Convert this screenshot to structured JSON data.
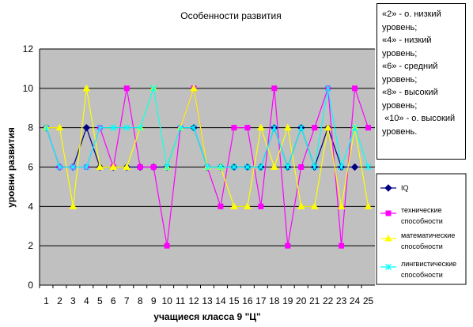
{
  "chart_data": {
    "type": "line",
    "title": "Особенности развития",
    "xlabel": "учащиеся класса 9 \"Ц\"",
    "ylabel": "уровни развития",
    "ylim": [
      0,
      12
    ],
    "yticks": [
      0,
      2,
      4,
      6,
      8,
      10,
      12
    ],
    "x": [
      1,
      2,
      3,
      4,
      5,
      6,
      7,
      8,
      9,
      10,
      11,
      12,
      13,
      14,
      15,
      16,
      17,
      18,
      19,
      20,
      21,
      22,
      23,
      24,
      25
    ],
    "grid": true,
    "legend_position": "right",
    "series": [
      {
        "name": "IQ",
        "color": "#000080",
        "marker": "diamond",
        "values": [
          8,
          6,
          6,
          8,
          6,
          6,
          6,
          6,
          6,
          6,
          8,
          8,
          6,
          6,
          6,
          6,
          6,
          8,
          6,
          8,
          6,
          8,
          6,
          6,
          null
        ]
      },
      {
        "name": "технические способности",
        "color": "#ff00ff",
        "marker": "square",
        "values": [
          8,
          6,
          6,
          6,
          8,
          6,
          10,
          6,
          6,
          2,
          8,
          10,
          6,
          4,
          8,
          8,
          4,
          10,
          2,
          6,
          8,
          10,
          2,
          10,
          8
        ]
      },
      {
        "name": "математические способности",
        "color": "#ffff00",
        "marker": "triangle",
        "values": [
          8,
          8,
          4,
          10,
          6,
          6,
          6,
          8,
          10,
          6,
          8,
          10,
          6,
          6,
          4,
          4,
          8,
          6,
          8,
          4,
          4,
          8,
          4,
          8,
          4
        ]
      },
      {
        "name": "лингвистические способности",
        "color": "#00ffff",
        "marker": "x",
        "values": [
          8,
          6,
          6,
          6,
          8,
          8,
          8,
          8,
          10,
          6,
          8,
          8,
          6,
          6,
          6,
          6,
          6,
          8,
          6,
          8,
          6,
          10,
          6,
          8,
          6
        ]
      }
    ],
    "note": [
      "«2» - о. низкий",
      "уровень;",
      "«4» - низкий",
      "уровень;",
      "«6» - средний",
      "уровень;",
      "«8» - высокий",
      "уровень;",
      " «10» - о. высокий",
      "уровень."
    ]
  }
}
